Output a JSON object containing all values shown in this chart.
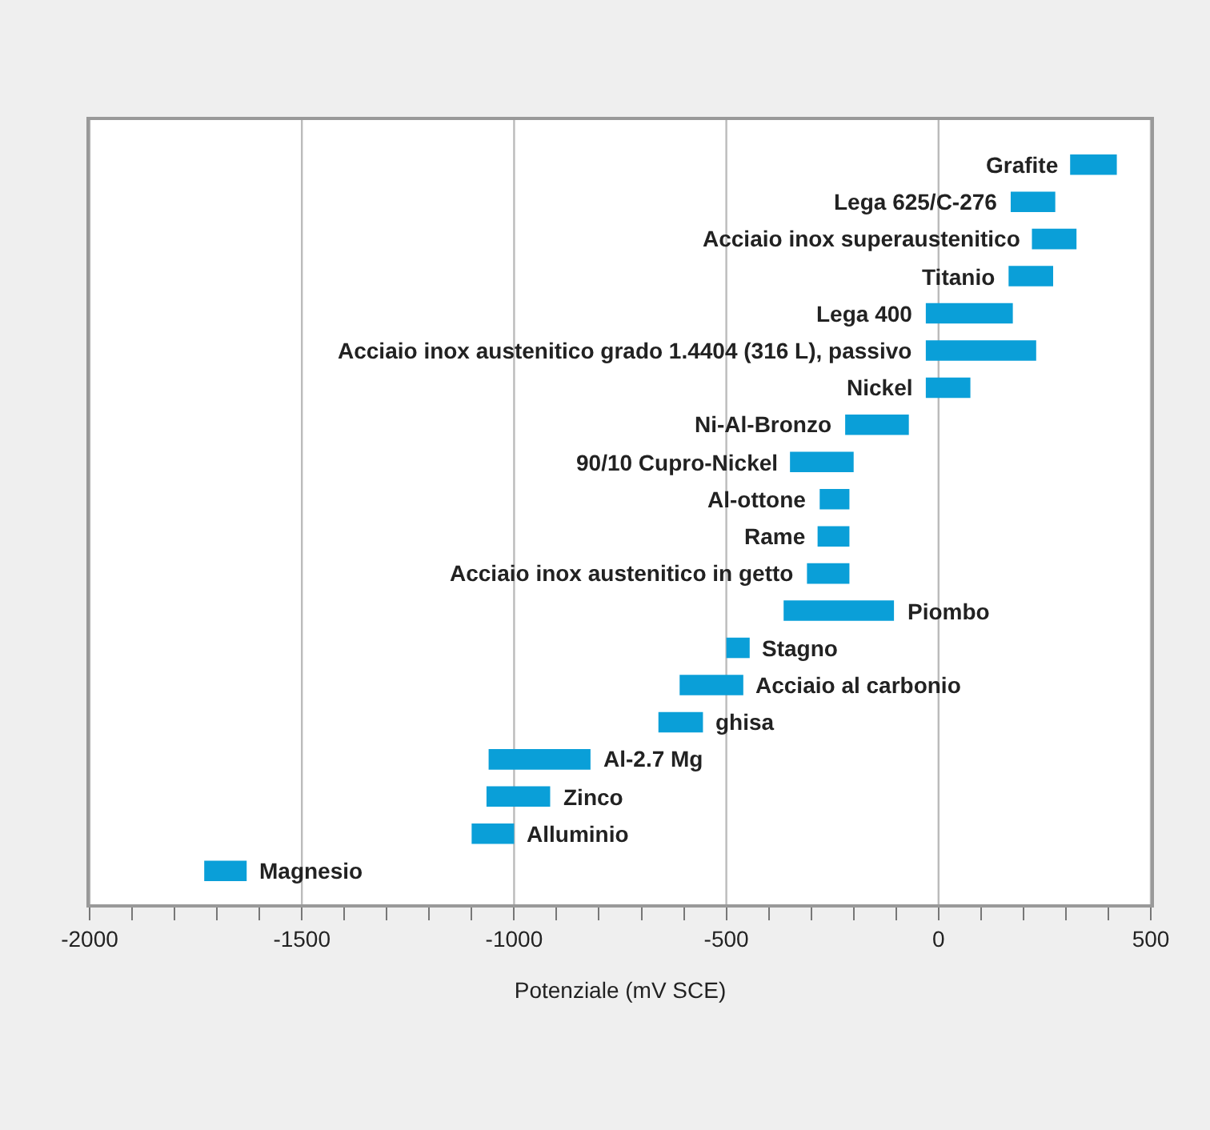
{
  "chart_data": {
    "type": "bar",
    "orientation": "horizontal",
    "xlabel": "Potenziale (mV SCE)",
    "categories": [
      "Grafite",
      "Lega 625/C-276",
      "Acciaio inox superaustenitico",
      "Titanio",
      "Lega 400",
      "Acciaio inox austenitico grado 1.4404 (316 L), passivo",
      "Nickel",
      "Ni-Al-Bronzo",
      "90/10 Cupro-Nickel",
      "Al-ottone",
      "Rame",
      "Acciaio inox austenitico in getto",
      "Piombo",
      "Stagno",
      "Acciaio al carbonio",
      "ghisa",
      "Al-2.7 Mg",
      "Zinco",
      "Alluminio",
      "Magnesio"
    ],
    "base": [
      310,
      170,
      220,
      165,
      -30,
      -30,
      -30,
      -220,
      -350,
      -280,
      -285,
      -310,
      -365,
      -500,
      -610,
      -660,
      -1060,
      -1065,
      -1100,
      -1730
    ],
    "values": [
      110,
      105,
      105,
      105,
      205,
      260,
      105,
      150,
      150,
      70,
      75,
      100,
      260,
      55,
      150,
      105,
      240,
      150,
      100,
      100
    ],
    "color": "#0a9fd8",
    "xlim": [
      -2000,
      500
    ],
    "xticks": [
      -2000,
      {
        "value": -1900,
        "label": null
      },
      {
        "value": -1800,
        "label": null
      },
      {
        "value": -1700,
        "label": null
      },
      {
        "value": -1600,
        "label": null
      },
      -1500,
      {
        "value": -1400,
        "label": null
      },
      {
        "value": -1300,
        "label": null
      },
      {
        "value": -1200,
        "label": null
      },
      {
        "value": -1100,
        "label": null
      },
      -1000,
      {
        "value": -900,
        "label": null
      },
      {
        "value": -800,
        "label": null
      },
      {
        "value": -700,
        "label": null
      },
      {
        "value": -600,
        "label": null
      },
      -500,
      {
        "value": -400,
        "label": null
      },
      {
        "value": -300,
        "label": null
      },
      {
        "value": -200,
        "label": null
      },
      {
        "value": -100,
        "label": null
      },
      0,
      {
        "value": 100,
        "label": null
      },
      {
        "value": 200,
        "label": null
      },
      {
        "value": 300,
        "label": null
      },
      {
        "value": 400,
        "label": null
      },
      500
    ],
    "grid": "x",
    "tick_labels": "x"
  }
}
